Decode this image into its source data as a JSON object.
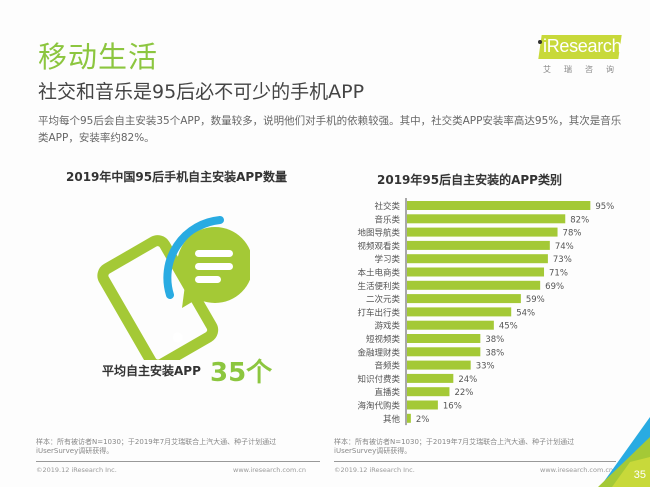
{
  "header": {
    "title": "移动生活",
    "subtitle": "社交和音乐是95后必不可少的手机APP",
    "description": "平均每个95后会自主安装35个APP，数量较多，说明他们对手机的依赖较强。其中，社交类APP安装率高达95%，其次是音乐类APP，安装率约82%。"
  },
  "logo": {
    "brand": "iResearch",
    "brand_cn": "艾瑞咨询",
    "color": "#c8d93a"
  },
  "left_panel": {
    "title": "2019年中国95后手机自主安装APP数量",
    "icon": "phone-chat-icon",
    "avg_label": "平均自主安装APP",
    "avg_value": "35个"
  },
  "chart_data": {
    "type": "bar",
    "orientation": "horizontal",
    "title": "2019年95后自主安装的APP类别",
    "categories": [
      "社交类",
      "音乐类",
      "地图导航类",
      "视频观看类",
      "学习类",
      "本土电商类",
      "生活便利类",
      "二次元类",
      "打车出行类",
      "游戏类",
      "短视频类",
      "金融理财类",
      "音频类",
      "知识付费类",
      "直播类",
      "海淘代购类",
      "其他"
    ],
    "values": [
      95,
      82,
      78,
      74,
      73,
      71,
      69,
      59,
      54,
      45,
      38,
      38,
      33,
      24,
      22,
      16,
      2
    ],
    "labels": [
      "95%",
      "82%",
      "78%",
      "74%",
      "73%",
      "71%",
      "69%",
      "59%",
      "54%",
      "45%",
      "38%",
      "38%",
      "33%",
      "24%",
      "22%",
      "16%",
      "2%"
    ],
    "unit": "%",
    "xlim": [
      0,
      100
    ],
    "bar_color": "#a4c936",
    "grid": false
  },
  "footer": {
    "left": {
      "note": "样本：所有被访者N=1030；于2019年7月艾瑞联合上汽大通、种子计划通过iUserSurvey调研获得。",
      "copyright": "©2019.12 iResearch Inc.",
      "url": "www.iresearch.com.cn"
    },
    "right": {
      "note": "样本：所有被访者N=1030；于2019年7月艾瑞联合上汽大通、种子计划通过iUserSurvey调研获得。",
      "copyright": "©2019.12 iResearch Inc.",
      "url": "www.iresearch.com.cn"
    },
    "page_number": "35"
  }
}
